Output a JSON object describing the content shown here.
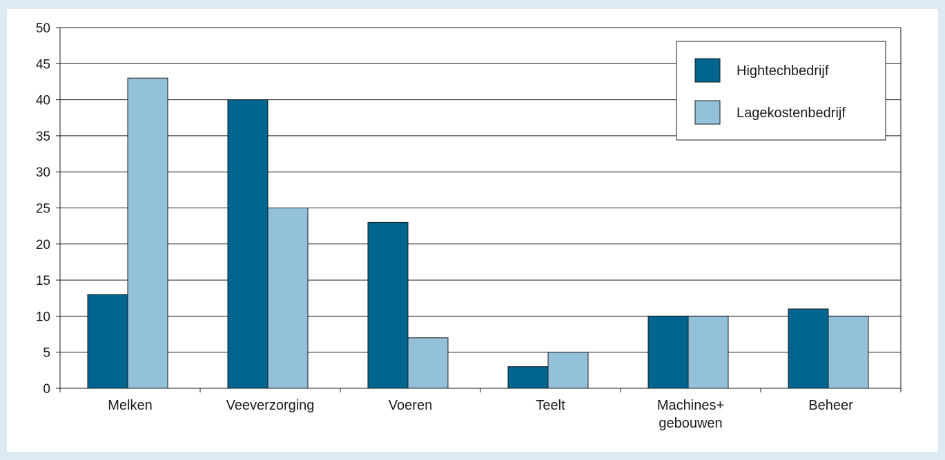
{
  "chart_data": {
    "type": "bar",
    "categories": [
      [
        "Melken"
      ],
      [
        "Veeverzorging"
      ],
      [
        "Voeren"
      ],
      [
        "Teelt"
      ],
      [
        "Machines+",
        "gebouwen"
      ],
      [
        "Beheer"
      ]
    ],
    "series": [
      {
        "name": "Hightechbedrijf",
        "values": [
          13,
          40,
          23,
          3,
          10,
          11
        ],
        "color": "#006690"
      },
      {
        "name": "Lagekostenbedrijf",
        "values": [
          43,
          25,
          7,
          5,
          10,
          10
        ],
        "color": "#93c1d9"
      }
    ],
    "ylim": [
      0,
      50
    ],
    "yticks": [
      0,
      5,
      10,
      15,
      20,
      25,
      30,
      35,
      40,
      45,
      50
    ],
    "grid": true,
    "legend_position": "top-right",
    "colors": {
      "background": "#dde9f3",
      "panel": "#ffffff",
      "grid": "#1a1a1a",
      "bar_outline": "#1a1a1a"
    }
  }
}
